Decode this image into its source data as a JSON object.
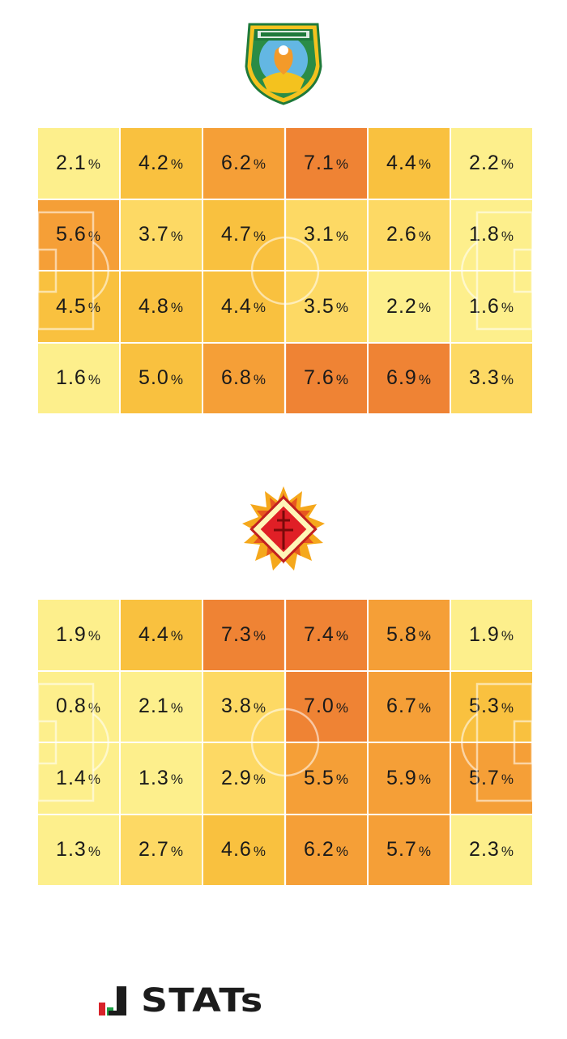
{
  "colors": {
    "scale": [
      "#fdef8c",
      "#fdd964",
      "#f9c13f",
      "#f59f37",
      "#ef8334"
    ],
    "bin_edges": [
      2.5,
      4.0,
      5.5,
      6.9
    ]
  },
  "teams": [
    {
      "logo": {
        "icon": "vanraure-hachinohe-crest"
      },
      "percent_sign": "%"
    },
    {
      "logo": {
        "icon": "giravanz-kitakyushu-crest"
      },
      "percent_sign": "%"
    }
  ],
  "chart_data": [
    {
      "type": "heatmap",
      "rows": 4,
      "cols": 6,
      "unit": "%",
      "values": [
        [
          2.1,
          4.2,
          6.2,
          7.1,
          4.4,
          2.2
        ],
        [
          5.6,
          3.7,
          4.7,
          3.1,
          2.6,
          1.8
        ],
        [
          4.5,
          4.8,
          4.4,
          3.5,
          2.2,
          1.6
        ],
        [
          1.6,
          5.0,
          6.8,
          7.6,
          6.9,
          3.3
        ]
      ]
    },
    {
      "type": "heatmap",
      "rows": 4,
      "cols": 6,
      "unit": "%",
      "values": [
        [
          1.9,
          4.4,
          7.3,
          7.4,
          5.8,
          1.9
        ],
        [
          0.8,
          2.1,
          3.8,
          7.0,
          6.7,
          5.3
        ],
        [
          1.4,
          1.3,
          2.9,
          5.5,
          5.9,
          5.7
        ],
        [
          1.3,
          2.7,
          4.6,
          6.2,
          5.7,
          2.3
        ]
      ]
    }
  ],
  "footer": {
    "brand": "STATs",
    "icon": "stats-bars-icon"
  }
}
